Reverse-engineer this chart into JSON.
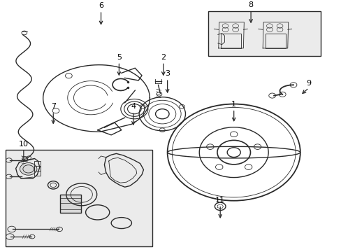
{
  "background_color": "#ffffff",
  "line_color": "#2a2a2a",
  "label_color": "#000000",
  "box_fill": "#ebebeb",
  "figsize": [
    4.89,
    3.6
  ],
  "dpi": 100,
  "labels": {
    "1": [
      0.685,
      0.545,
      0.685,
      0.515
    ],
    "2": [
      0.478,
      0.735,
      0.478,
      0.7
    ],
    "3": [
      0.49,
      0.668,
      0.49,
      0.63
    ],
    "4": [
      0.39,
      0.535,
      0.39,
      0.5
    ],
    "5": [
      0.348,
      0.735,
      0.348,
      0.7
    ],
    "6": [
      0.295,
      0.942,
      0.295,
      0.905
    ],
    "7": [
      0.155,
      0.535,
      0.155,
      0.505
    ],
    "8": [
      0.735,
      0.945,
      0.735,
      0.912
    ],
    "9": [
      0.905,
      0.63,
      0.88,
      0.63
    ],
    "10": [
      0.068,
      0.385,
      0.068,
      0.35
    ],
    "11": [
      0.645,
      0.158,
      0.645,
      0.125
    ]
  }
}
